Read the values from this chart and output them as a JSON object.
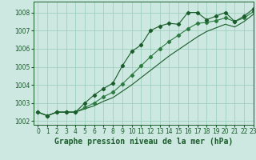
{
  "background_color": "#cce8e0",
  "plot_bg_color": "#cce8e0",
  "grid_color": "#99ccbb",
  "line_color_main": "#1a5c2a",
  "line_color_light": "#2d7a40",
  "title": "Graphe pression niveau de la mer (hPa)",
  "xlim": [
    -0.5,
    23
  ],
  "ylim": [
    1001.8,
    1008.6
  ],
  "yticks": [
    1002,
    1003,
    1004,
    1005,
    1006,
    1007,
    1008
  ],
  "xticks": [
    0,
    1,
    2,
    3,
    4,
    5,
    6,
    7,
    8,
    9,
    10,
    11,
    12,
    13,
    14,
    15,
    16,
    17,
    18,
    19,
    20,
    21,
    22,
    23
  ],
  "series1_x": [
    0,
    1,
    2,
    3,
    4,
    5,
    6,
    7,
    8,
    9,
    10,
    11,
    12,
    13,
    14,
    15,
    16,
    17,
    18,
    19,
    20,
    21,
    22,
    23
  ],
  "series1_y": [
    1002.5,
    1002.3,
    1002.5,
    1002.5,
    1002.5,
    1003.0,
    1003.45,
    1003.8,
    1004.1,
    1005.05,
    1005.85,
    1006.2,
    1007.0,
    1007.25,
    1007.4,
    1007.35,
    1008.0,
    1008.0,
    1007.6,
    1007.8,
    1008.0,
    1007.5,
    1007.8,
    1008.2
  ],
  "series2_x": [
    0,
    1,
    2,
    3,
    4,
    5,
    6,
    7,
    8,
    9,
    10,
    11,
    12,
    13,
    14,
    15,
    16,
    17,
    18,
    19,
    20,
    21,
    22,
    23
  ],
  "series2_y": [
    1002.5,
    1002.3,
    1002.5,
    1002.5,
    1002.5,
    1002.75,
    1003.0,
    1003.35,
    1003.6,
    1004.05,
    1004.55,
    1005.05,
    1005.55,
    1006.0,
    1006.4,
    1006.75,
    1007.1,
    1007.4,
    1007.45,
    1007.55,
    1007.7,
    1007.5,
    1007.7,
    1008.05
  ],
  "series3_x": [
    0,
    1,
    2,
    3,
    4,
    5,
    6,
    7,
    8,
    9,
    10,
    11,
    12,
    13,
    14,
    15,
    16,
    17,
    18,
    19,
    20,
    21,
    22,
    23
  ],
  "series3_y": [
    1002.5,
    1002.3,
    1002.5,
    1002.5,
    1002.5,
    1002.68,
    1002.85,
    1003.1,
    1003.3,
    1003.65,
    1004.0,
    1004.4,
    1004.8,
    1005.2,
    1005.6,
    1005.95,
    1006.3,
    1006.65,
    1006.95,
    1007.15,
    1007.35,
    1007.2,
    1007.5,
    1007.9
  ],
  "title_fontsize": 7,
  "tick_fontsize": 5.5,
  "marker": "D",
  "markersize": 2.2
}
